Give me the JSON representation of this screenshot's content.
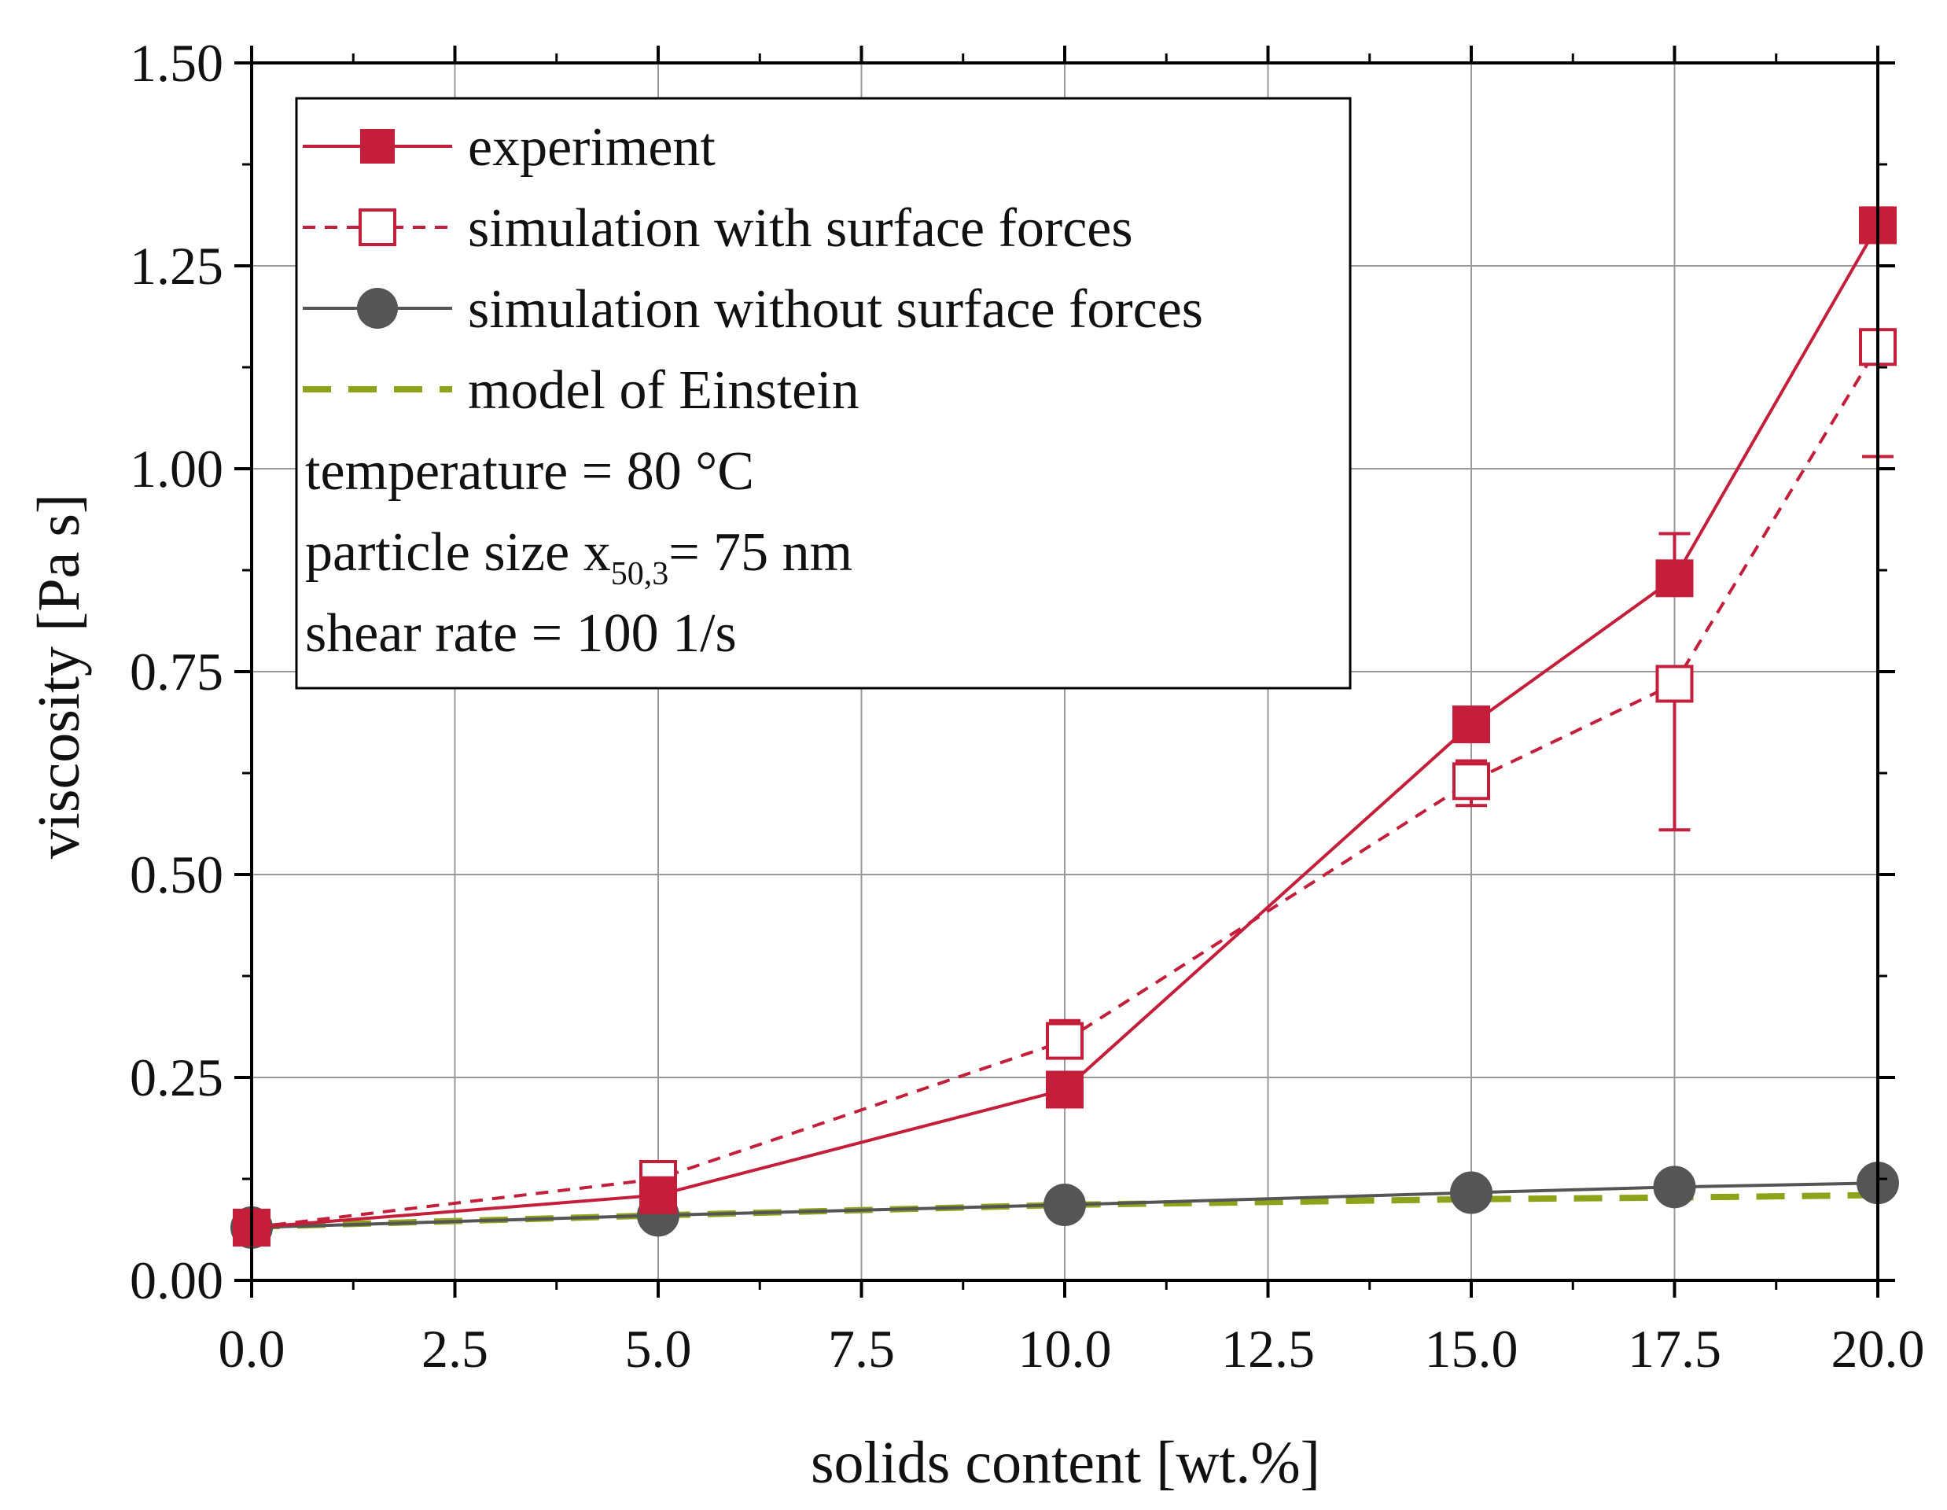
{
  "chart_data": {
    "type": "line",
    "xlabel": "solids content [wt.%]",
    "ylabel": "viscosity [Pa s]",
    "xlim": [
      0,
      20
    ],
    "ylim": [
      0,
      1.5
    ],
    "x_ticks": [
      "0.0",
      "2.5",
      "5.0",
      "7.5",
      "10.0",
      "12.5",
      "15.0",
      "17.5",
      "20.0"
    ],
    "x_tick_values": [
      0,
      2.5,
      5,
      7.5,
      10,
      12.5,
      15,
      17.5,
      20
    ],
    "y_ticks": [
      "0.00",
      "0.25",
      "0.50",
      "0.75",
      "1.00",
      "1.25",
      "1.50"
    ],
    "y_tick_values": [
      0,
      0.25,
      0.5,
      0.75,
      1.0,
      1.25,
      1.5
    ],
    "grid": true,
    "legend_position": "top-left",
    "series": [
      {
        "name": "experiment",
        "color": "#c41e3a",
        "marker": "filled-square",
        "line": "solid",
        "x": [
          0,
          5,
          10,
          15,
          17.5,
          20
        ],
        "values": [
          0.065,
          0.105,
          0.235,
          0.685,
          0.865,
          1.3
        ],
        "error_low": [
          null,
          null,
          null,
          null,
          null,
          null
        ],
        "error_high": [
          null,
          null,
          null,
          null,
          0.92,
          null
        ]
      },
      {
        "name": "simulation with surface forces",
        "color": "#c41e3a",
        "marker": "open-square",
        "line": "dashed",
        "x": [
          0,
          5,
          10,
          15,
          17.5,
          20
        ],
        "values": [
          0.065,
          0.125,
          0.295,
          0.615,
          0.735,
          1.15
        ],
        "error_low": [
          null,
          null,
          0.275,
          0.585,
          0.555,
          1.015
        ],
        "error_high": [
          null,
          null,
          0.32,
          0.64,
          null,
          null
        ]
      },
      {
        "name": "simulation without surface forces",
        "color": "#555555",
        "marker": "filled-circle",
        "line": "solid",
        "x": [
          0,
          5,
          10,
          15,
          17.5,
          20
        ],
        "values": [
          0.065,
          0.08,
          0.093,
          0.108,
          0.115,
          0.12
        ]
      },
      {
        "name": "model of Einstein",
        "color": "#8fa31a",
        "marker": "none",
        "line": "long-dash",
        "x": [
          0,
          5,
          10,
          15,
          17.5,
          20
        ],
        "values": [
          0.066,
          0.08,
          0.093,
          0.1,
          0.102,
          0.105
        ]
      }
    ],
    "annotations": [
      {
        "id": "temperature",
        "text": "temperature = 80 °C"
      },
      {
        "id": "particle",
        "text_main": "particle size x",
        "text_sub": "50,3",
        "text_after": "= 75 nm"
      },
      {
        "id": "shear",
        "text": "shear rate = 100 1/s"
      }
    ]
  }
}
